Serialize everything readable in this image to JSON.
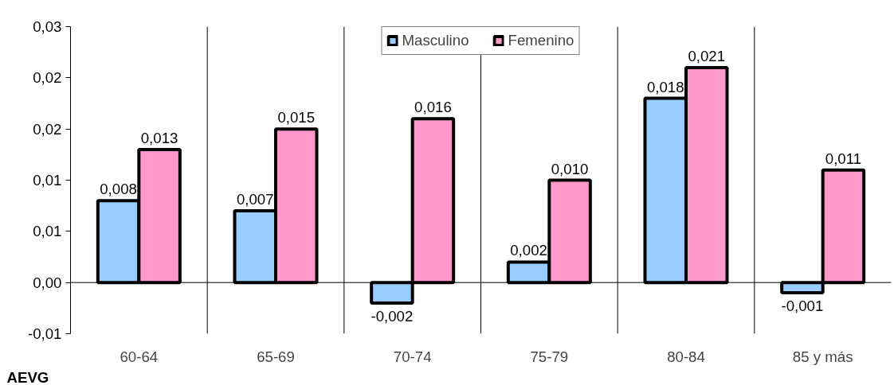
{
  "chart_data": {
    "type": "bar",
    "xlabel": "AEVG",
    "categories": [
      "60-64",
      "65-69",
      "70-74",
      "75-79",
      "80-84",
      "85 y más"
    ],
    "series": [
      {
        "name": "Masculino",
        "color": "#99ccff",
        "values": [
          0.008,
          0.007,
          -0.002,
          0.002,
          0.018,
          -0.001
        ]
      },
      {
        "name": "Femenino",
        "color": "#ff99cc",
        "values": [
          0.013,
          0.015,
          0.016,
          0.01,
          0.021,
          0.011
        ]
      }
    ],
    "ylim": [
      -0.005,
      0.025
    ],
    "yticks": [
      {
        "value": -0.005,
        "label": "-0,01"
      },
      {
        "value": 0,
        "label": "0,00"
      },
      {
        "value": 0.005,
        "label": "0,01"
      },
      {
        "value": 0.01,
        "label": "0,01"
      },
      {
        "value": 0.015,
        "label": "0,02"
      },
      {
        "value": 0.02,
        "label": "0,02"
      },
      {
        "value": 0.025,
        "label": "0,03"
      }
    ],
    "value_labels": [
      [
        "0,008",
        "0,007",
        "-0,002",
        "0,002",
        "0,018",
        "-0,001"
      ],
      [
        "0,013",
        "0,015",
        "0,016",
        "0,010",
        "0,021",
        "0,011"
      ]
    ],
    "ref_lines": [
      {
        "axis": "y",
        "value": 0
      }
    ],
    "grid": "x",
    "legend": "top"
  }
}
